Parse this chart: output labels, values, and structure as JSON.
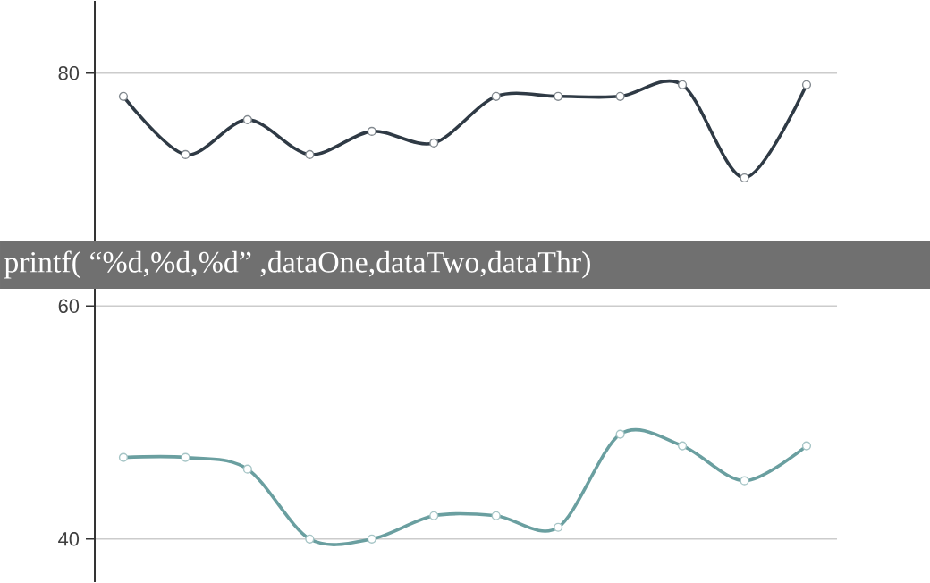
{
  "chart_data": {
    "type": "line",
    "categories": [
      null,
      null,
      null,
      null,
      null,
      null,
      null,
      null,
      null,
      null,
      null,
      null
    ],
    "series": [
      {
        "color": "#2f3a45",
        "values": [
          78,
          73,
          76,
          73,
          75,
          74,
          78,
          78,
          78,
          79,
          71,
          79
        ]
      },
      {
        "color": "#6a9fa0",
        "values": [
          47,
          47,
          46,
          40,
          40,
          42,
          42,
          41,
          49,
          48,
          45,
          48
        ]
      }
    ],
    "ylim": [
      36.3,
      86.2
    ],
    "yticks": [
      40,
      60,
      80
    ],
    "grid": "y",
    "marker": "circle",
    "line_style": "solid",
    "tick_labels": "y",
    "annotations": [
      "printf( “%d,%d,%d” ,dataOne,dataTwo,dataThr)"
    ]
  }
}
